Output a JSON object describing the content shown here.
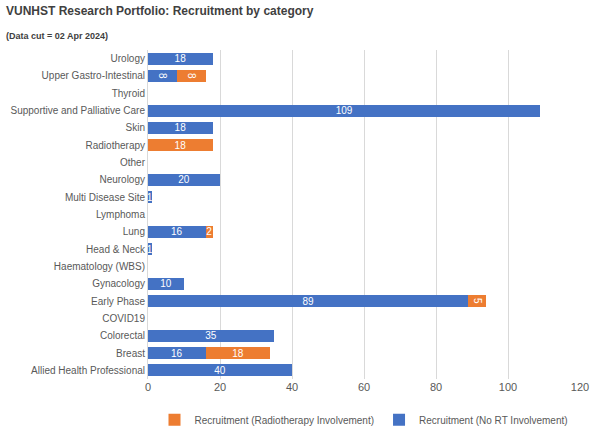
{
  "chart_data": {
    "type": "bar",
    "title": "VUNHST Research Portfolio: Recruitment by category",
    "subtitle": "(Data cut = 02 Apr 2024)",
    "orientation": "horizontal",
    "stacked": true,
    "data_labels": true,
    "grid": true,
    "legend": "bottom",
    "categories": [
      "Allied Health Professional",
      "Breast",
      "Colorectal",
      "COVID19",
      "Early Phase",
      "Gynacology",
      "Haematology (WBS)",
      "Head & Neck",
      "Lung",
      "Lymphoma",
      "Multi Disease Site",
      "Neurology",
      "Other",
      "Radiotherapy",
      "Skin",
      "Supportive and Palliative Care",
      "Thyroid",
      "Upper Gastro-Intestinal",
      "Urology"
    ],
    "series": [
      {
        "name": "Recruitment (No RT Involvement)",
        "color": "#4472c4",
        "values": [
          40,
          16,
          35,
          null,
          89,
          10,
          null,
          1,
          16,
          null,
          1,
          20,
          null,
          null,
          18,
          109,
          null,
          8,
          18
        ]
      },
      {
        "name": "Recruitment (Radiotherapy Involvement)",
        "color": "#ed7d31",
        "values": [
          null,
          18,
          null,
          null,
          5,
          null,
          null,
          null,
          2,
          null,
          null,
          null,
          null,
          18,
          null,
          null,
          null,
          8,
          null
        ]
      }
    ],
    "xlim": [
      0,
      120
    ],
    "xticks": [
      0,
      20,
      40,
      60,
      80,
      100,
      120
    ]
  }
}
